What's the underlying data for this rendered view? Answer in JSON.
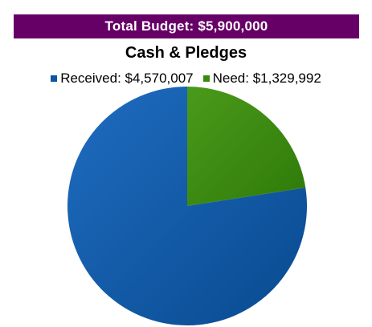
{
  "banner": {
    "text": "Total Budget:  $5,900,000"
  },
  "chart_data": {
    "type": "pie",
    "title": "Cash & Pledges",
    "legend_position": "top",
    "slices": [
      {
        "label": "Received: $4,570,007",
        "value": 4570007,
        "color": "#0b57a3"
      },
      {
        "label": "Need: $1,329,992",
        "value": 1329992,
        "color": "#3a8a10"
      }
    ]
  }
}
